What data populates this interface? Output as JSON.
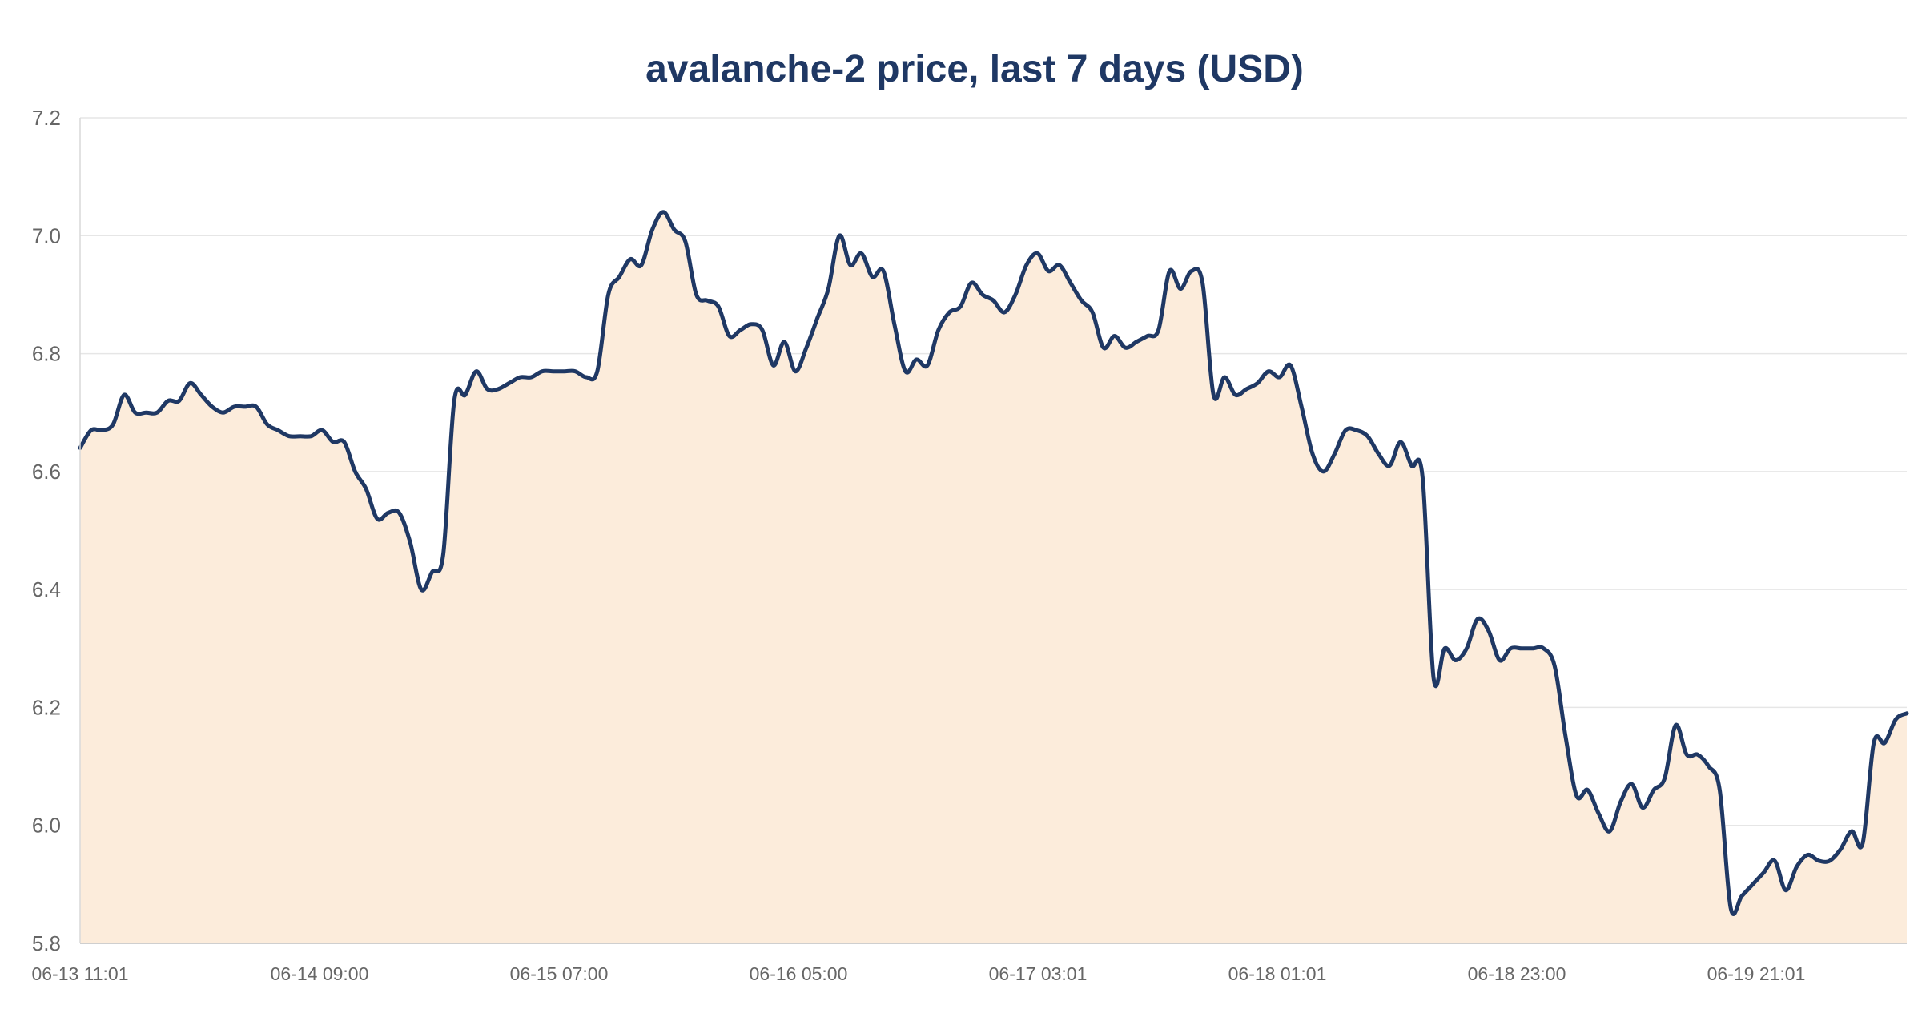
{
  "chart_data": {
    "type": "area",
    "title": "avalanche-2 price, last 7 days  (USD)",
    "xlabel": "",
    "ylabel": "",
    "ylim": [
      5.8,
      7.2
    ],
    "yticks": [
      "5.8",
      "6.0",
      "6.2",
      "6.4",
      "6.6",
      "6.8",
      "7.0",
      "7.2"
    ],
    "xticks": [
      "06-13 11:01",
      "06-14 09:00",
      "06-15 07:00",
      "06-16 05:00",
      "06-17 03:01",
      "06-18 01:01",
      "06-18 23:00",
      "06-19 21:01"
    ],
    "grid": true,
    "legend": "none",
    "colors": {
      "line": "#1f3864",
      "fill": "#fcecdb",
      "title": "#1f3864",
      "tick": "#666666"
    },
    "series": [
      {
        "values": [
          6.64,
          6.67,
          6.67,
          6.68,
          6.73,
          6.7,
          6.7,
          6.7,
          6.72,
          6.72,
          6.75,
          6.73,
          6.71,
          6.7,
          6.71,
          6.71,
          6.71,
          6.68,
          6.67,
          6.66,
          6.66,
          6.66,
          6.67,
          6.65,
          6.65,
          6.6,
          6.57,
          6.52,
          6.53,
          6.53,
          6.48,
          6.4,
          6.43,
          6.46,
          6.72,
          6.73,
          6.77,
          6.74,
          6.74,
          6.75,
          6.76,
          6.76,
          6.77,
          6.77,
          6.77,
          6.77,
          6.76,
          6.77,
          6.9,
          6.93,
          6.96,
          6.95,
          7.01,
          7.04,
          7.01,
          6.99,
          6.9,
          6.89,
          6.88,
          6.83,
          6.84,
          6.85,
          6.84,
          6.78,
          6.82,
          6.77,
          6.81,
          6.86,
          6.91,
          7.0,
          6.95,
          6.97,
          6.93,
          6.94,
          6.85,
          6.77,
          6.79,
          6.78,
          6.84,
          6.87,
          6.88,
          6.92,
          6.9,
          6.89,
          6.87,
          6.9,
          6.95,
          6.97,
          6.94,
          6.95,
          6.92,
          6.89,
          6.87,
          6.81,
          6.83,
          6.81,
          6.82,
          6.83,
          6.84,
          6.94,
          6.91,
          6.94,
          6.92,
          6.73,
          6.76,
          6.73,
          6.74,
          6.75,
          6.77,
          6.76,
          6.78,
          6.71,
          6.63,
          6.6,
          6.63,
          6.67,
          6.67,
          6.66,
          6.63,
          6.61,
          6.65,
          6.61,
          6.59,
          6.25,
          6.3,
          6.28,
          6.3,
          6.35,
          6.33,
          6.28,
          6.3,
          6.3,
          6.3,
          6.3,
          6.27,
          6.15,
          6.05,
          6.06,
          6.02,
          5.99,
          6.04,
          6.07,
          6.03,
          6.06,
          6.08,
          6.17,
          6.12,
          6.12,
          6.1,
          6.06,
          5.86,
          5.88,
          5.9,
          5.92,
          5.94,
          5.89,
          5.93,
          5.95,
          5.94,
          5.94,
          5.96,
          5.99,
          5.97,
          6.14,
          6.14,
          6.18,
          6.19
        ]
      }
    ]
  }
}
